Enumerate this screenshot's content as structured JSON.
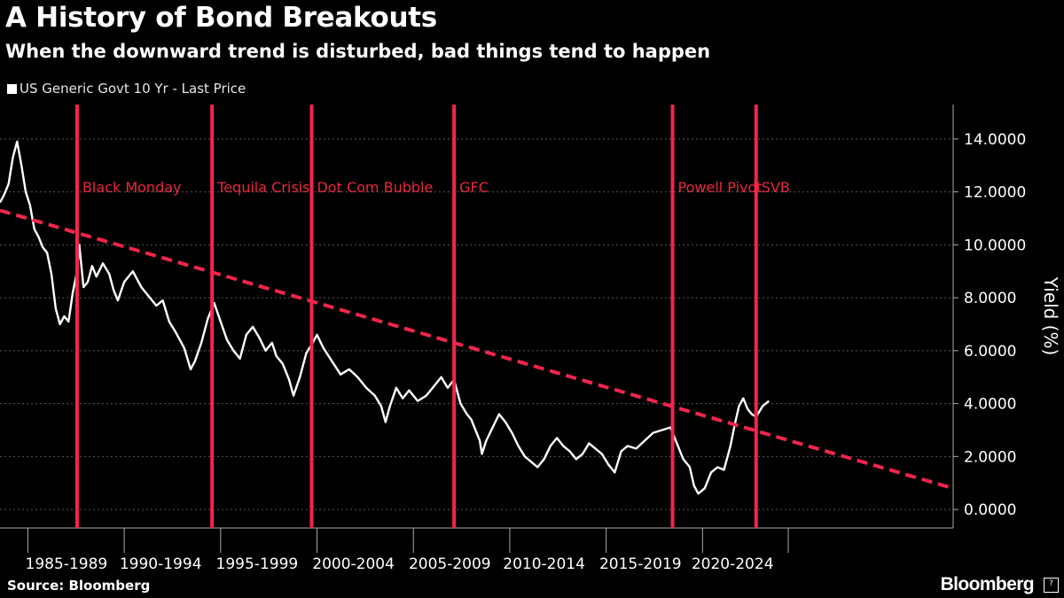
{
  "chart_data": {
    "type": "line",
    "title": "A History of Bond Breakouts",
    "subtitle": "When the downward trend is disturbed, bad things tend to happen",
    "legend": "US Generic Govt 10 Yr - Last Price",
    "ylabel": "Yield (%)",
    "ylim": [
      -0.7,
      15.3
    ],
    "xlim": [
      1980.7,
      2025.2
    ],
    "yticks": [
      0,
      2,
      4,
      6,
      8,
      10,
      12,
      14
    ],
    "ytick_labels": [
      "0.0000",
      "2.0000",
      "4.0000",
      "6.0000",
      "8.0000",
      "10.0000",
      "12.0000",
      "14.0000"
    ],
    "xtick_boundaries": [
      1982.0,
      1986.5,
      1991.0,
      1995.5,
      2000.0,
      2004.5,
      2009.0,
      2013.5,
      2017.5
    ],
    "xtick_labels": [
      {
        "label": "1985-1989",
        "center": 1983.8
      },
      {
        "label": "1990-1994",
        "center": 1988.2
      },
      {
        "label": "1995-1999",
        "center": 1992.7
      },
      {
        "label": "2000-2004",
        "center": 1997.2
      },
      {
        "label": "2005-2009",
        "center": 2001.7
      },
      {
        "label": "2010-2014",
        "center": 2006.1
      },
      {
        "label": "2015-2019",
        "center": 2010.6
      },
      {
        "label": "2020-2024",
        "center": 2014.9
      }
    ],
    "events": [
      {
        "label": "Black Monday",
        "x": 1984.3
      },
      {
        "label": "Tequila Crisis",
        "x": 1990.6
      },
      {
        "label": "Dot Com Bubble",
        "x": 1995.25
      },
      {
        "label": "GFC",
        "x": 2001.9
      },
      {
        "label": "Powell Pivot",
        "x": 2012.1
      },
      {
        "label": "SVB",
        "x": 2016.0
      }
    ],
    "trend": {
      "x": [
        1980.7,
        2025.2
      ],
      "y": [
        11.3,
        0.8
      ],
      "style": "dashed"
    },
    "series": [
      {
        "name": "US Generic Govt 10 Yr - Last Price",
        "points": [
          [
            1980.7,
            11.6
          ],
          [
            1980.9,
            11.9
          ],
          [
            1981.1,
            12.3
          ],
          [
            1981.3,
            13.3
          ],
          [
            1981.5,
            13.9
          ],
          [
            1981.7,
            13.0
          ],
          [
            1981.9,
            12.0
          ],
          [
            1982.1,
            11.5
          ],
          [
            1982.3,
            10.6
          ],
          [
            1982.5,
            10.3
          ],
          [
            1982.7,
            9.9
          ],
          [
            1982.9,
            9.7
          ],
          [
            1983.1,
            8.9
          ],
          [
            1983.3,
            7.6
          ],
          [
            1983.5,
            7.0
          ],
          [
            1983.7,
            7.3
          ],
          [
            1983.9,
            7.1
          ],
          [
            1984.1,
            8.2
          ],
          [
            1984.3,
            9.0
          ],
          [
            1984.4,
            10.0
          ],
          [
            1984.6,
            8.4
          ],
          [
            1984.8,
            8.6
          ],
          [
            1985.0,
            9.2
          ],
          [
            1985.2,
            8.8
          ],
          [
            1985.5,
            9.3
          ],
          [
            1985.8,
            8.9
          ],
          [
            1986.0,
            8.3
          ],
          [
            1986.2,
            7.9
          ],
          [
            1986.5,
            8.6
          ],
          [
            1986.9,
            9.0
          ],
          [
            1987.3,
            8.4
          ],
          [
            1987.7,
            8.0
          ],
          [
            1988.0,
            7.7
          ],
          [
            1988.3,
            7.9
          ],
          [
            1988.6,
            7.1
          ],
          [
            1988.9,
            6.7
          ],
          [
            1989.3,
            6.1
          ],
          [
            1989.6,
            5.3
          ],
          [
            1989.8,
            5.6
          ],
          [
            1990.1,
            6.3
          ],
          [
            1990.4,
            7.2
          ],
          [
            1990.7,
            7.8
          ],
          [
            1991.0,
            7.1
          ],
          [
            1991.3,
            6.4
          ],
          [
            1991.6,
            6.0
          ],
          [
            1991.9,
            5.7
          ],
          [
            1992.2,
            6.6
          ],
          [
            1992.5,
            6.9
          ],
          [
            1992.8,
            6.5
          ],
          [
            1993.1,
            6.0
          ],
          [
            1993.4,
            6.3
          ],
          [
            1993.6,
            5.8
          ],
          [
            1993.9,
            5.5
          ],
          [
            1994.2,
            4.9
          ],
          [
            1994.4,
            4.3
          ],
          [
            1994.7,
            5.0
          ],
          [
            1995.0,
            5.9
          ],
          [
            1995.3,
            6.3
          ],
          [
            1995.5,
            6.6
          ],
          [
            1995.8,
            6.1
          ],
          [
            1996.2,
            5.6
          ],
          [
            1996.6,
            5.1
          ],
          [
            1997.0,
            5.3
          ],
          [
            1997.4,
            5.0
          ],
          [
            1997.8,
            4.6
          ],
          [
            1998.2,
            4.3
          ],
          [
            1998.5,
            3.9
          ],
          [
            1998.7,
            3.3
          ],
          [
            1998.9,
            3.9
          ],
          [
            1999.2,
            4.6
          ],
          [
            1999.5,
            4.2
          ],
          [
            1999.8,
            4.5
          ],
          [
            2000.2,
            4.1
          ],
          [
            2000.6,
            4.3
          ],
          [
            2001.0,
            4.7
          ],
          [
            2001.3,
            5.0
          ],
          [
            2001.6,
            4.6
          ],
          [
            2001.9,
            4.9
          ],
          [
            2002.2,
            4.0
          ],
          [
            2002.5,
            3.6
          ],
          [
            2002.7,
            3.4
          ],
          [
            2002.9,
            3.0
          ],
          [
            2003.1,
            2.6
          ],
          [
            2003.2,
            2.1
          ],
          [
            2003.4,
            2.6
          ],
          [
            2003.7,
            3.1
          ],
          [
            2004.0,
            3.6
          ],
          [
            2004.3,
            3.3
          ],
          [
            2004.6,
            2.9
          ],
          [
            2004.9,
            2.4
          ],
          [
            2005.2,
            2.0
          ],
          [
            2005.5,
            1.8
          ],
          [
            2005.8,
            1.6
          ],
          [
            2006.1,
            1.9
          ],
          [
            2006.4,
            2.4
          ],
          [
            2006.7,
            2.7
          ],
          [
            2007.0,
            2.4
          ],
          [
            2007.3,
            2.2
          ],
          [
            2007.6,
            1.9
          ],
          [
            2007.9,
            2.1
          ],
          [
            2008.2,
            2.5
          ],
          [
            2008.5,
            2.3
          ],
          [
            2008.8,
            2.1
          ],
          [
            2009.1,
            1.7
          ],
          [
            2009.4,
            1.4
          ],
          [
            2009.7,
            2.2
          ],
          [
            2010.0,
            2.4
          ],
          [
            2010.4,
            2.3
          ],
          [
            2010.8,
            2.6
          ],
          [
            2011.2,
            2.9
          ],
          [
            2011.6,
            3.0
          ],
          [
            2012.0,
            3.1
          ],
          [
            2012.3,
            2.5
          ],
          [
            2012.6,
            1.9
          ],
          [
            2012.9,
            1.6
          ],
          [
            2013.1,
            0.9
          ],
          [
            2013.3,
            0.6
          ],
          [
            2013.6,
            0.8
          ],
          [
            2013.9,
            1.4
          ],
          [
            2014.2,
            1.6
          ],
          [
            2014.5,
            1.5
          ],
          [
            2014.8,
            2.4
          ],
          [
            2015.0,
            3.2
          ],
          [
            2015.2,
            3.9
          ],
          [
            2015.4,
            4.2
          ],
          [
            2015.6,
            3.8
          ],
          [
            2015.8,
            3.6
          ],
          [
            2016.0,
            3.5
          ],
          [
            2016.3,
            3.9
          ],
          [
            2016.6,
            4.1
          ]
        ]
      }
    ]
  },
  "footer": {
    "source": "Source: Bloomberg",
    "brand": "Bloomberg",
    "brand_mark": "?"
  },
  "colors": {
    "background": "#000000",
    "series": "#ffffff",
    "event_line": "#f2254d",
    "event_text": "#e8283c",
    "trend": "#f2254d",
    "grid": "#5a5a5a",
    "axis": "#aaaaaa"
  }
}
